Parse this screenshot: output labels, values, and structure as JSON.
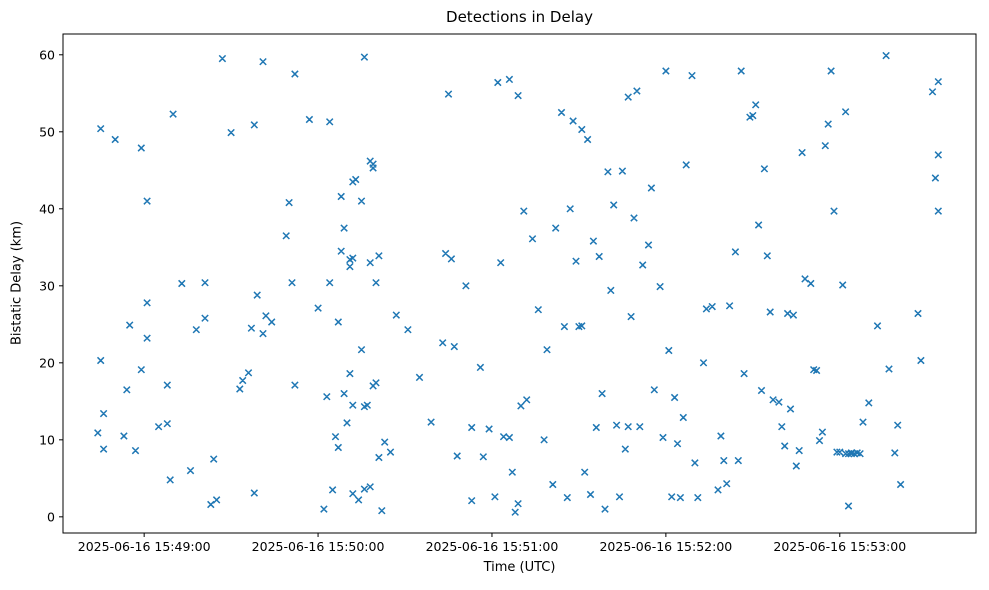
{
  "figure": {
    "title": "Detections in Delay",
    "xlabel": "Time (UTC)",
    "ylabel": "Bistatic Delay (km)"
  },
  "chart_data": {
    "type": "scatter",
    "title": "Detections in Delay",
    "xlabel": "Time (UTC)",
    "ylabel": "Bistatic Delay (km)",
    "marker": "x",
    "marker_color": "#1f77b4",
    "grid": false,
    "legend": "none",
    "x_unit": "seconds after 2025-06-16 15:48:00 UTC",
    "xlim": [
      32,
      347
    ],
    "ylim": [
      -2.1,
      62.7
    ],
    "x_ticks": [
      {
        "value": 60,
        "label": "2025-06-16 15:49:00"
      },
      {
        "value": 120,
        "label": "2025-06-16 15:50:00"
      },
      {
        "value": 180,
        "label": "2025-06-16 15:51:00"
      },
      {
        "value": 240,
        "label": "2025-06-16 15:52:00"
      },
      {
        "value": 300,
        "label": "2025-06-16 15:53:00"
      }
    ],
    "y_ticks": [
      0,
      10,
      20,
      30,
      40,
      50,
      60
    ],
    "points": [
      [
        45,
        50.4
      ],
      [
        50,
        49.0
      ],
      [
        45,
        20.3
      ],
      [
        46,
        13.4
      ],
      [
        44,
        10.9
      ],
      [
        46,
        8.8
      ],
      [
        53,
        10.5
      ],
      [
        54,
        16.5
      ],
      [
        55,
        24.9
      ],
      [
        57,
        8.6
      ],
      [
        59,
        19.1
      ],
      [
        59,
        47.9
      ],
      [
        61,
        41.0
      ],
      [
        61,
        23.2
      ],
      [
        61,
        27.8
      ],
      [
        65,
        11.7
      ],
      [
        68,
        12.1
      ],
      [
        68,
        17.1
      ],
      [
        70,
        52.3
      ],
      [
        69,
        4.8
      ],
      [
        73,
        30.3
      ],
      [
        76,
        6.0
      ],
      [
        78,
        24.3
      ],
      [
        81,
        25.8
      ],
      [
        83,
        1.6
      ],
      [
        85,
        2.2
      ],
      [
        81,
        30.4
      ],
      [
        84,
        7.5
      ],
      [
        87,
        59.5
      ],
      [
        90,
        49.9
      ],
      [
        93,
        16.6
      ],
      [
        94,
        17.7
      ],
      [
        96,
        18.7
      ],
      [
        97,
        24.5
      ],
      [
        98,
        50.9
      ],
      [
        99,
        28.8
      ],
      [
        101,
        59.1
      ],
      [
        101,
        23.8
      ],
      [
        102,
        26.1
      ],
      [
        104,
        25.3
      ],
      [
        98,
        3.1
      ],
      [
        109,
        36.5
      ],
      [
        110,
        40.8
      ],
      [
        111,
        30.4
      ],
      [
        112,
        17.1
      ],
      [
        112,
        57.5
      ],
      [
        117,
        51.6
      ],
      [
        120,
        27.1
      ],
      [
        122,
        1.0
      ],
      [
        123,
        15.6
      ],
      [
        125,
        3.5
      ],
      [
        124,
        51.3
      ],
      [
        124,
        30.4
      ],
      [
        126,
        10.4
      ],
      [
        127,
        25.3
      ],
      [
        128,
        34.5
      ],
      [
        128,
        41.6
      ],
      [
        129,
        37.5
      ],
      [
        127,
        9.0
      ],
      [
        129,
        16.0
      ],
      [
        130,
        12.2
      ],
      [
        131,
        32.5
      ],
      [
        131,
        33.4
      ],
      [
        132,
        33.6
      ],
      [
        132,
        43.5
      ],
      [
        131,
        18.6
      ],
      [
        132,
        3.0
      ],
      [
        132,
        14.5
      ],
      [
        133,
        43.8
      ],
      [
        134,
        2.2
      ],
      [
        135,
        41.0
      ],
      [
        135,
        21.7
      ],
      [
        136,
        3.6
      ],
      [
        138,
        3.9
      ],
      [
        136,
        59.7
      ],
      [
        136,
        14.3
      ],
      [
        137,
        14.5
      ],
      [
        138,
        46.2
      ],
      [
        139,
        45.8
      ],
      [
        139,
        45.3
      ],
      [
        138,
        33.0
      ],
      [
        139,
        17.0
      ],
      [
        140,
        17.4
      ],
      [
        140,
        30.4
      ],
      [
        141,
        33.9
      ],
      [
        141,
        7.7
      ],
      [
        142,
        0.8
      ],
      [
        143,
        9.7
      ],
      [
        145,
        8.4
      ],
      [
        147,
        26.2
      ],
      [
        151,
        24.3
      ],
      [
        155,
        18.1
      ],
      [
        159,
        12.3
      ],
      [
        163,
        22.6
      ],
      [
        164,
        34.2
      ],
      [
        166,
        33.5
      ],
      [
        165,
        54.9
      ],
      [
        167,
        22.1
      ],
      [
        168,
        7.9
      ],
      [
        171,
        30.0
      ],
      [
        173,
        2.1
      ],
      [
        173,
        11.6
      ],
      [
        176,
        19.4
      ],
      [
        177,
        7.8
      ],
      [
        179,
        11.4
      ],
      [
        181,
        2.6
      ],
      [
        182,
        56.4
      ],
      [
        183,
        33.0
      ],
      [
        184,
        10.4
      ],
      [
        186,
        10.3
      ],
      [
        186,
        56.8
      ],
      [
        187,
        5.8
      ],
      [
        188,
        0.6
      ],
      [
        189,
        54.7
      ],
      [
        189,
        1.7
      ],
      [
        190,
        14.4
      ],
      [
        191,
        39.7
      ],
      [
        192,
        15.2
      ],
      [
        194,
        36.1
      ],
      [
        196,
        26.9
      ],
      [
        198,
        10.0
      ],
      [
        199,
        21.7
      ],
      [
        201,
        4.2
      ],
      [
        202,
        37.5
      ],
      [
        204,
        52.5
      ],
      [
        205,
        24.7
      ],
      [
        206,
        2.5
      ],
      [
        207,
        40.0
      ],
      [
        208,
        51.4
      ],
      [
        209,
        33.2
      ],
      [
        210,
        24.7
      ],
      [
        211,
        24.8
      ],
      [
        212,
        5.8
      ],
      [
        211,
        50.3
      ],
      [
        213,
        49.0
      ],
      [
        214,
        2.9
      ],
      [
        215,
        35.8
      ],
      [
        216,
        11.6
      ],
      [
        217,
        33.8
      ],
      [
        218,
        16.0
      ],
      [
        219,
        1.0
      ],
      [
        220,
        44.8
      ],
      [
        221,
        29.4
      ],
      [
        222,
        40.5
      ],
      [
        223,
        11.9
      ],
      [
        224,
        2.6
      ],
      [
        225,
        44.9
      ],
      [
        226,
        8.8
      ],
      [
        227,
        11.7
      ],
      [
        227,
        54.5
      ],
      [
        228,
        26.0
      ],
      [
        229,
        38.8
      ],
      [
        230,
        55.3
      ],
      [
        231,
        11.7
      ],
      [
        232,
        32.7
      ],
      [
        234,
        35.3
      ],
      [
        235,
        42.7
      ],
      [
        236,
        16.5
      ],
      [
        238,
        29.9
      ],
      [
        239,
        10.3
      ],
      [
        240,
        57.9
      ],
      [
        241,
        21.6
      ],
      [
        242,
        2.6
      ],
      [
        243,
        15.5
      ],
      [
        244,
        9.5
      ],
      [
        245,
        2.5
      ],
      [
        246,
        12.9
      ],
      [
        247,
        45.7
      ],
      [
        249,
        57.3
      ],
      [
        250,
        7.0
      ],
      [
        251,
        2.5
      ],
      [
        253,
        20.0
      ],
      [
        254,
        27.0
      ],
      [
        256,
        27.3
      ],
      [
        258,
        3.5
      ],
      [
        259,
        10.5
      ],
      [
        260,
        7.3
      ],
      [
        261,
        4.3
      ],
      [
        262,
        27.4
      ],
      [
        264,
        34.4
      ],
      [
        265,
        7.3
      ],
      [
        266,
        57.9
      ],
      [
        267,
        18.6
      ],
      [
        269,
        51.9
      ],
      [
        270,
        52.1
      ],
      [
        271,
        53.5
      ],
      [
        272,
        37.9
      ],
      [
        273,
        16.4
      ],
      [
        274,
        45.2
      ],
      [
        275,
        33.9
      ],
      [
        276,
        26.6
      ],
      [
        277,
        15.2
      ],
      [
        279,
        14.9
      ],
      [
        280,
        11.7
      ],
      [
        281,
        9.2
      ],
      [
        282,
        26.4
      ],
      [
        283,
        14.0
      ],
      [
        284,
        26.2
      ],
      [
        285,
        6.6
      ],
      [
        286,
        8.6
      ],
      [
        287,
        47.3
      ],
      [
        288,
        30.9
      ],
      [
        290,
        30.3
      ],
      [
        291,
        19.1
      ],
      [
        292,
        19.0
      ],
      [
        293,
        9.9
      ],
      [
        294,
        11.0
      ],
      [
        295,
        48.2
      ],
      [
        296,
        51.0
      ],
      [
        297,
        57.9
      ],
      [
        298,
        39.7
      ],
      [
        299,
        8.4
      ],
      [
        300,
        8.4
      ],
      [
        301,
        30.1
      ],
      [
        302,
        52.6
      ],
      [
        303,
        1.4
      ],
      [
        302,
        8.2
      ],
      [
        303,
        8.2
      ],
      [
        304,
        8.2
      ],
      [
        304,
        8.3
      ],
      [
        305,
        8.2
      ],
      [
        306,
        8.3
      ],
      [
        307,
        8.2
      ],
      [
        308,
        12.3
      ],
      [
        310,
        14.8
      ],
      [
        313,
        24.8
      ],
      [
        316,
        59.9
      ],
      [
        317,
        19.2
      ],
      [
        319,
        8.3
      ],
      [
        320,
        11.9
      ],
      [
        321,
        4.2
      ],
      [
        327,
        26.4
      ],
      [
        328,
        20.3
      ],
      [
        332,
        55.2
      ],
      [
        334,
        56.5
      ],
      [
        334,
        47.0
      ],
      [
        333,
        44.0
      ],
      [
        334,
        39.7
      ]
    ]
  }
}
